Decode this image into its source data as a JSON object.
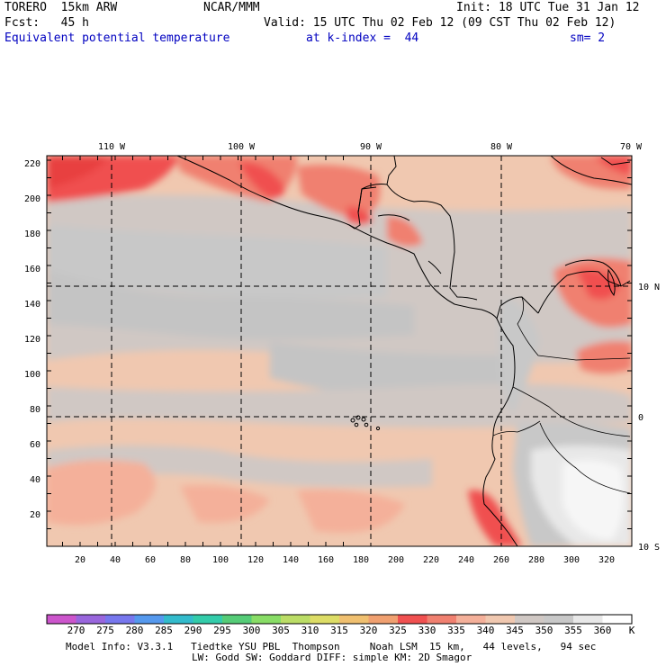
{
  "header": {
    "model": "TORERO  15km ARW",
    "org": "NCAR/MMM",
    "init": "Init: 18 UTC Tue 31 Jan 12",
    "fcst": "Fcst:   45 h",
    "valid": "Valid: 15 UTC Thu 02 Feb 12 (09 CST Thu 02 Feb 12)",
    "field": "Equivalent potential temperature",
    "level": "at k-index =  44",
    "smooth": "sm= 2"
  },
  "axes": {
    "top_ticks": [
      "110 W",
      "100 W",
      "90 W",
      "80 W",
      "70 W"
    ],
    "right_ticks": [
      "10 N",
      "0",
      "10 S"
    ],
    "left_ticks": [
      "220",
      "200",
      "180",
      "160",
      "140",
      "120",
      "100",
      "80",
      "60",
      "40",
      "20"
    ],
    "bottom_ticks": [
      "20",
      "40",
      "60",
      "80",
      "100",
      "120",
      "140",
      "160",
      "180",
      "200",
      "220",
      "240",
      "260",
      "280",
      "300",
      "320"
    ]
  },
  "colorbar": {
    "labels": [
      "270",
      "275",
      "280",
      "285",
      "290",
      "295",
      "300",
      "305",
      "310",
      "315",
      "320",
      "325",
      "330",
      "335",
      "340",
      "345",
      "350",
      "355",
      "360"
    ],
    "unit": "K",
    "colors": [
      "#cc55cc",
      "#9966dd",
      "#7777ee",
      "#5599ee",
      "#33bbcc",
      "#33ccaa",
      "#55cc77",
      "#88dd66",
      "#bbdd66",
      "#dddd66",
      "#f0c070",
      "#f0a070",
      "#f05050",
      "#f08070",
      "#f4b09a",
      "#f0c8b0",
      "#d0c8c4",
      "#c8c8c8",
      "#e8e8e8",
      "#ffffff"
    ]
  },
  "footer": {
    "line1": "Model Info: V3.3.1   Tiedtke YSU PBL  Thompson     Noah LSM  15 km,   44 levels,   94 sec",
    "line2": "LW: Godd SW: Goddard DIFF: simple KM: 2D Smagor"
  }
}
